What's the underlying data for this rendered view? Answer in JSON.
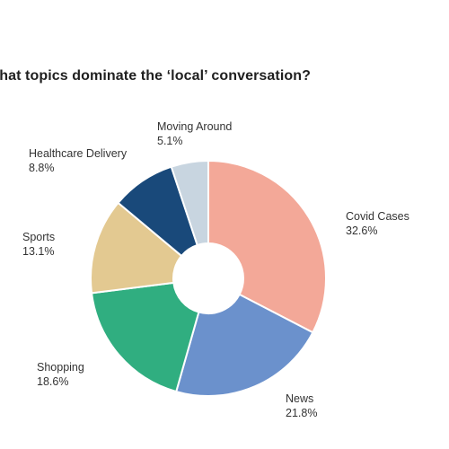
{
  "chart_data": {
    "type": "pie",
    "title": "What topics dominate the ‘local’ conversation?",
    "categories": [
      "Covid Cases",
      "News",
      "Shopping",
      "Sports",
      "Healthcare Delivery",
      "Moving Around"
    ],
    "values": [
      32.6,
      21.8,
      18.6,
      13.1,
      8.8,
      5.1
    ],
    "value_labels": [
      "32.6%",
      "21.8%",
      "18.6%",
      "13.1%",
      "8.8%",
      "5.1%"
    ],
    "colors": [
      "#f3a898",
      "#6b91cc",
      "#30ae80",
      "#e3c991",
      "#19497a",
      "#c8d5e0"
    ],
    "donut": true,
    "start": "12 o'clock",
    "direction": "clockwise",
    "legend": "none"
  }
}
